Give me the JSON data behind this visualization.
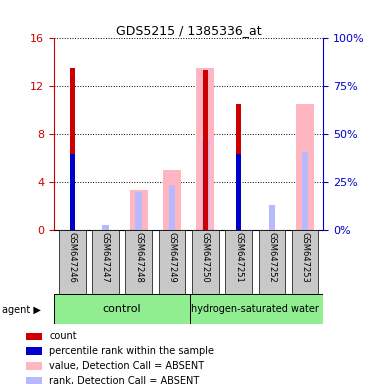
{
  "title": "GDS5215 / 1385336_at",
  "samples": [
    "GSM647246",
    "GSM647247",
    "GSM647248",
    "GSM647249",
    "GSM647250",
    "GSM647251",
    "GSM647252",
    "GSM647253"
  ],
  "ylim_left": [
    0,
    16
  ],
  "ylim_right": [
    0,
    100
  ],
  "yticks_left": [
    0,
    4,
    8,
    12,
    16
  ],
  "yticks_right": [
    0,
    25,
    50,
    75,
    100
  ],
  "count_values": [
    13.5,
    0,
    0,
    0,
    13.4,
    10.5,
    0,
    0
  ],
  "rank_values": [
    6.4,
    0,
    0,
    0,
    0,
    6.4,
    0,
    0
  ],
  "absent_value_values": [
    0,
    0,
    3.4,
    5.0,
    13.5,
    0,
    0,
    10.5
  ],
  "absent_rank_values": [
    0,
    0.45,
    3.2,
    3.8,
    7.5,
    0,
    2.1,
    6.5
  ],
  "count_color": "#CC0000",
  "rank_color": "#0000CC",
  "absent_value_color": "#FFB6C1",
  "absent_rank_color": "#B8B8FF",
  "left_axis_color": "#CC0000",
  "right_axis_color": "#0000CC",
  "control_color": "#90EE90",
  "label_bg_color": "#C8C8C8",
  "legend_items": [
    [
      "#CC0000",
      "count"
    ],
    [
      "#0000CC",
      "percentile rank within the sample"
    ],
    [
      "#FFB6C1",
      "value, Detection Call = ABSENT"
    ],
    [
      "#B8B8FF",
      "rank, Detection Call = ABSENT"
    ]
  ]
}
